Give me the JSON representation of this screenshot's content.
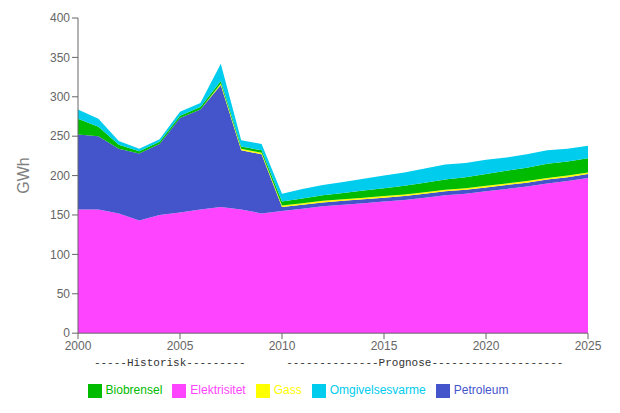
{
  "chart_data": {
    "type": "area",
    "stacked": true,
    "x": [
      2000,
      2001,
      2002,
      2003,
      2004,
      2005,
      2006,
      2007,
      2008,
      2009,
      2010,
      2011,
      2012,
      2013,
      2014,
      2015,
      2016,
      2017,
      2018,
      2019,
      2020,
      2021,
      2022,
      2023,
      2024,
      2025
    ],
    "xlim": [
      2000,
      2025
    ],
    "xticks": [
      2000,
      2005,
      2010,
      2015,
      2020,
      2025
    ],
    "ylim": [
      0,
      400
    ],
    "yticks": [
      0,
      50,
      100,
      150,
      200,
      250,
      300,
      350,
      400
    ],
    "ylabel": "GWh",
    "series": [
      {
        "name": "Elektrisitet",
        "color": "#ff44ff",
        "values": [
          157,
          157,
          152,
          143,
          150,
          153,
          157,
          160,
          157,
          152,
          155,
          158,
          161,
          163,
          165,
          167,
          169,
          172,
          175,
          177,
          180,
          183,
          186,
          190,
          193,
          197
        ]
      },
      {
        "name": "Petroleum",
        "color": "#4455cc",
        "values": [
          95,
          93,
          82,
          85,
          90,
          120,
          127,
          155,
          75,
          75,
          5,
          5,
          5,
          5,
          5,
          5,
          5,
          5,
          5,
          5,
          5,
          5,
          5,
          5,
          5,
          5
        ]
      },
      {
        "name": "Gass",
        "color": "#ffff00",
        "values": [
          0,
          0,
          0,
          0,
          0,
          0,
          0,
          2,
          2,
          2,
          2,
          2,
          2,
          2,
          2,
          2,
          2,
          2,
          2,
          2,
          2,
          2,
          2,
          2,
          2,
          2
        ]
      },
      {
        "name": "Biobrensel",
        "color": "#00bb00",
        "values": [
          20,
          12,
          5,
          3,
          3,
          3,
          3,
          3,
          3,
          3,
          5,
          6,
          7,
          8,
          9,
          10,
          11,
          12,
          13,
          14,
          15,
          16,
          17,
          18,
          18,
          18
        ]
      },
      {
        "name": "Omgivelsesvarme",
        "color": "#00ccee",
        "values": [
          12,
          10,
          5,
          3,
          3,
          5,
          5,
          22,
          8,
          8,
          10,
          12,
          13,
          14,
          15,
          16,
          17,
          18,
          19,
          18,
          18,
          17,
          17,
          17,
          16,
          16
        ]
      }
    ],
    "annotations": [
      {
        "text": "-----Historisk---------",
        "x": 2004.5
      },
      {
        "text": "--------------Prognose--------------------",
        "x": 2017
      }
    ],
    "legend": "bottom",
    "grid": false
  }
}
